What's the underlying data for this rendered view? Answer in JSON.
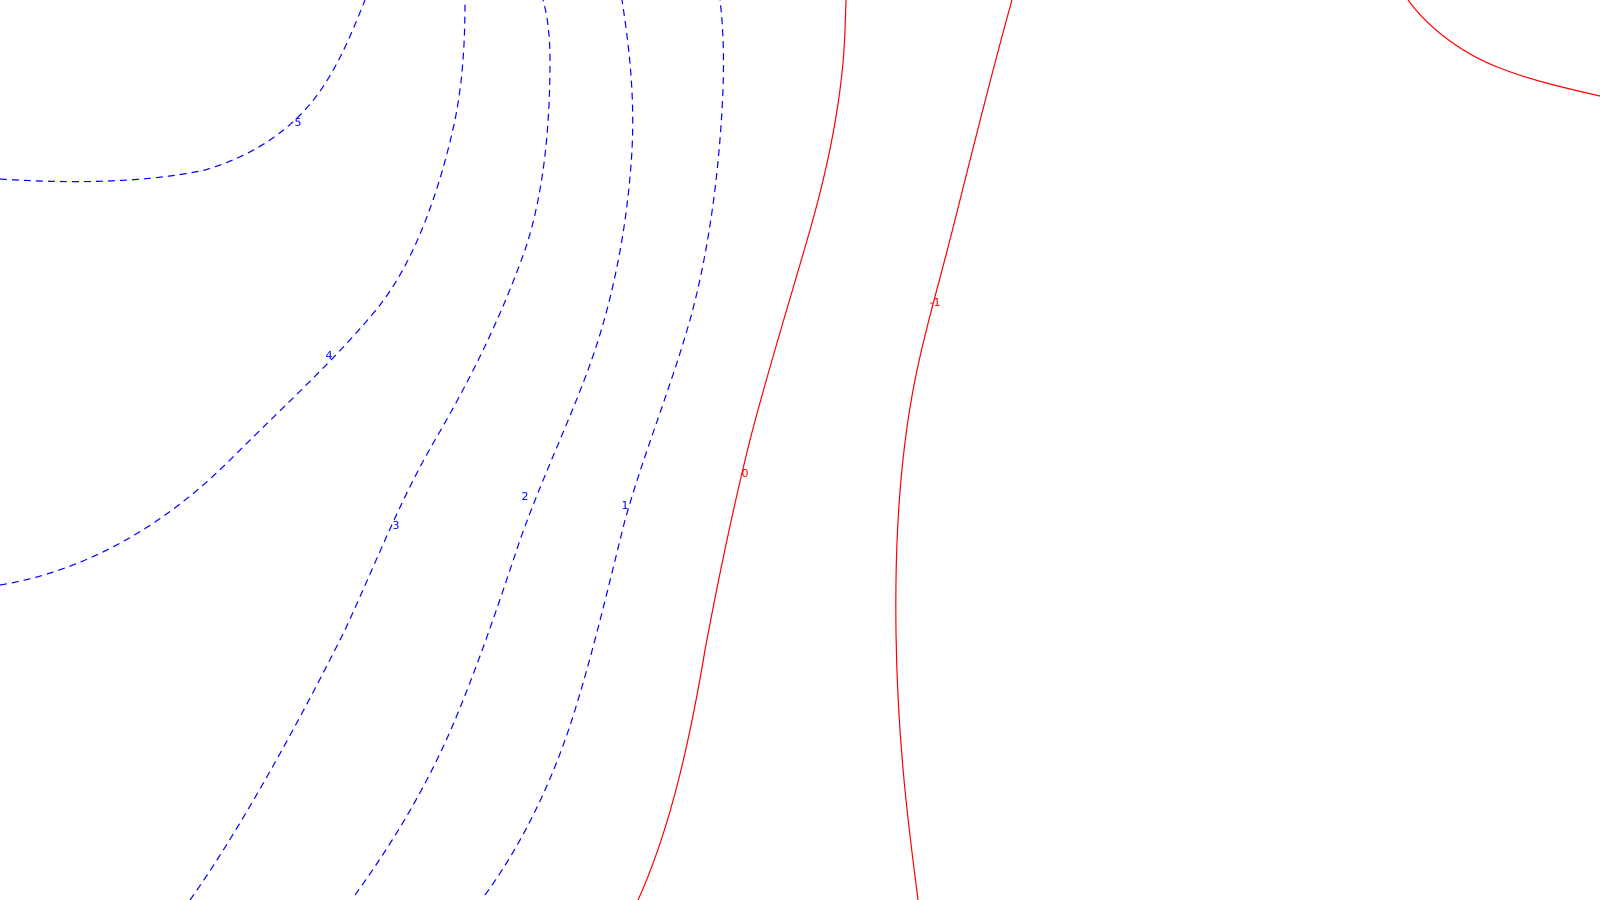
{
  "map": {
    "contours": [
      {
        "id": "c5",
        "label": "5",
        "style": "dashed",
        "sign": "positive"
      },
      {
        "id": "c4",
        "label": "4",
        "style": "dashed",
        "sign": "positive"
      },
      {
        "id": "c3",
        "label": "3",
        "style": "dashed",
        "sign": "positive"
      },
      {
        "id": "c2",
        "label": "2",
        "style": "dashed",
        "sign": "positive"
      },
      {
        "id": "c1",
        "label": "1",
        "style": "dashed",
        "sign": "positive"
      },
      {
        "id": "c0",
        "label": "0",
        "style": "solid",
        "sign": "zero-or-negative"
      },
      {
        "id": "cm1",
        "label": "-1",
        "style": "solid",
        "sign": "zero-or-negative"
      },
      {
        "id": "cm2",
        "label": "",
        "style": "solid",
        "sign": "zero-or-negative"
      }
    ],
    "colors": {
      "positive": "#0000ff",
      "negative": "#ff0000",
      "background": "#ffffff"
    }
  }
}
